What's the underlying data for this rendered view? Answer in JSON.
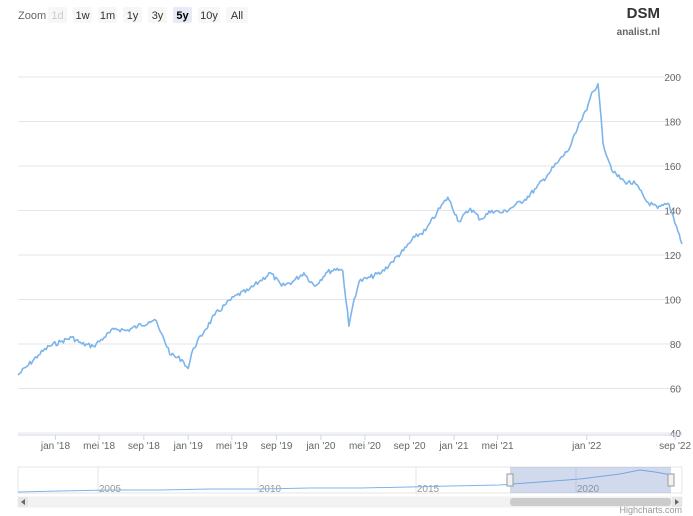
{
  "range_selector": {
    "label": "Zoom",
    "buttons": [
      {
        "label": "1d",
        "state": "disabled"
      },
      {
        "label": "1w",
        "state": "normal"
      },
      {
        "label": "1m",
        "state": "normal"
      },
      {
        "label": "1y",
        "state": "normal"
      },
      {
        "label": "3y",
        "state": "normal"
      },
      {
        "label": "5y",
        "state": "selected"
      },
      {
        "label": "10y",
        "state": "normal"
      },
      {
        "label": "All",
        "state": "normal"
      }
    ]
  },
  "credits": "Highcharts.com",
  "chart_data": {
    "type": "line",
    "title": "DSM",
    "subtitle": "analist.nl",
    "xlabel": "",
    "ylabel": "",
    "y_axis_position": "right",
    "ylim": [
      40,
      200
    ],
    "ytick_labels": [
      "40",
      "60",
      "80",
      "100",
      "120",
      "140",
      "160",
      "180",
      "200"
    ],
    "xlim": [
      "2017-09-20",
      "2022-09-20"
    ],
    "xtick_labels": [
      {
        "label": "jan '18",
        "date": "2018-01-01"
      },
      {
        "label": "mei '18",
        "date": "2018-05-01"
      },
      {
        "label": "sep '18",
        "date": "2018-09-01"
      },
      {
        "label": "jan '19",
        "date": "2019-01-01"
      },
      {
        "label": "mei '19",
        "date": "2019-05-01"
      },
      {
        "label": "sep '19",
        "date": "2019-09-01"
      },
      {
        "label": "jan '20",
        "date": "2020-01-01"
      },
      {
        "label": "mei '20",
        "date": "2020-05-01"
      },
      {
        "label": "sep '20",
        "date": "2020-09-01"
      },
      {
        "label": "jan '21",
        "date": "2021-01-01"
      },
      {
        "label": "mei '21",
        "date": "2021-05-01"
      },
      {
        "label": "jan '22",
        "date": "2022-01-01"
      },
      {
        "label": "sep '22",
        "date": "2022-09-01"
      }
    ],
    "grid": true,
    "line_color": "#7cb5ec",
    "series": [
      {
        "name": "",
        "x": [
          "2017-09-20",
          "2017-10-15",
          "2017-11-15",
          "2017-12-15",
          "2018-01-15",
          "2018-02-15",
          "2018-03-15",
          "2018-04-15",
          "2018-05-15",
          "2018-06-15",
          "2018-07-15",
          "2018-08-15",
          "2018-09-15",
          "2018-10-01",
          "2018-10-15",
          "2018-11-15",
          "2018-12-15",
          "2019-01-01",
          "2019-01-15",
          "2019-02-15",
          "2019-03-15",
          "2019-04-15",
          "2019-05-15",
          "2019-06-15",
          "2019-07-15",
          "2019-08-15",
          "2019-09-15",
          "2019-10-15",
          "2019-11-15",
          "2019-12-15",
          "2020-01-15",
          "2020-02-15",
          "2020-03-01",
          "2020-03-18",
          "2020-04-01",
          "2020-04-15",
          "2020-05-15",
          "2020-06-15",
          "2020-07-15",
          "2020-08-15",
          "2020-09-15",
          "2020-10-15",
          "2020-11-15",
          "2020-12-15",
          "2021-01-15",
          "2021-02-15",
          "2021-03-15",
          "2021-04-15",
          "2021-05-15",
          "2021-06-15",
          "2021-07-15",
          "2021-08-15",
          "2021-09-15",
          "2021-10-15",
          "2021-11-15",
          "2021-12-15",
          "2022-01-01",
          "2022-01-15",
          "2022-02-01",
          "2022-02-15",
          "2022-03-15",
          "2022-04-15",
          "2022-05-15",
          "2022-06-15",
          "2022-07-15",
          "2022-08-15",
          "2022-09-05",
          "2022-09-20"
        ],
        "y": [
          66,
          70,
          75,
          79,
          81,
          83,
          80,
          79,
          83,
          87,
          86,
          88,
          90,
          91,
          86,
          75,
          73,
          69,
          78,
          86,
          93,
          98,
          102,
          104,
          108,
          112,
          106,
          108,
          112,
          106,
          112,
          114,
          113,
          88,
          100,
          108,
          110,
          112,
          117,
          122,
          128,
          131,
          139,
          146,
          135,
          141,
          136,
          140,
          139,
          142,
          145,
          150,
          156,
          162,
          168,
          180,
          185,
          193,
          197,
          170,
          157,
          153,
          152,
          144,
          141,
          143,
          133,
          125
        ]
      }
    ]
  },
  "navigator": {
    "tick_labels": [
      "2005",
      "2010",
      "2015",
      "2020"
    ]
  }
}
